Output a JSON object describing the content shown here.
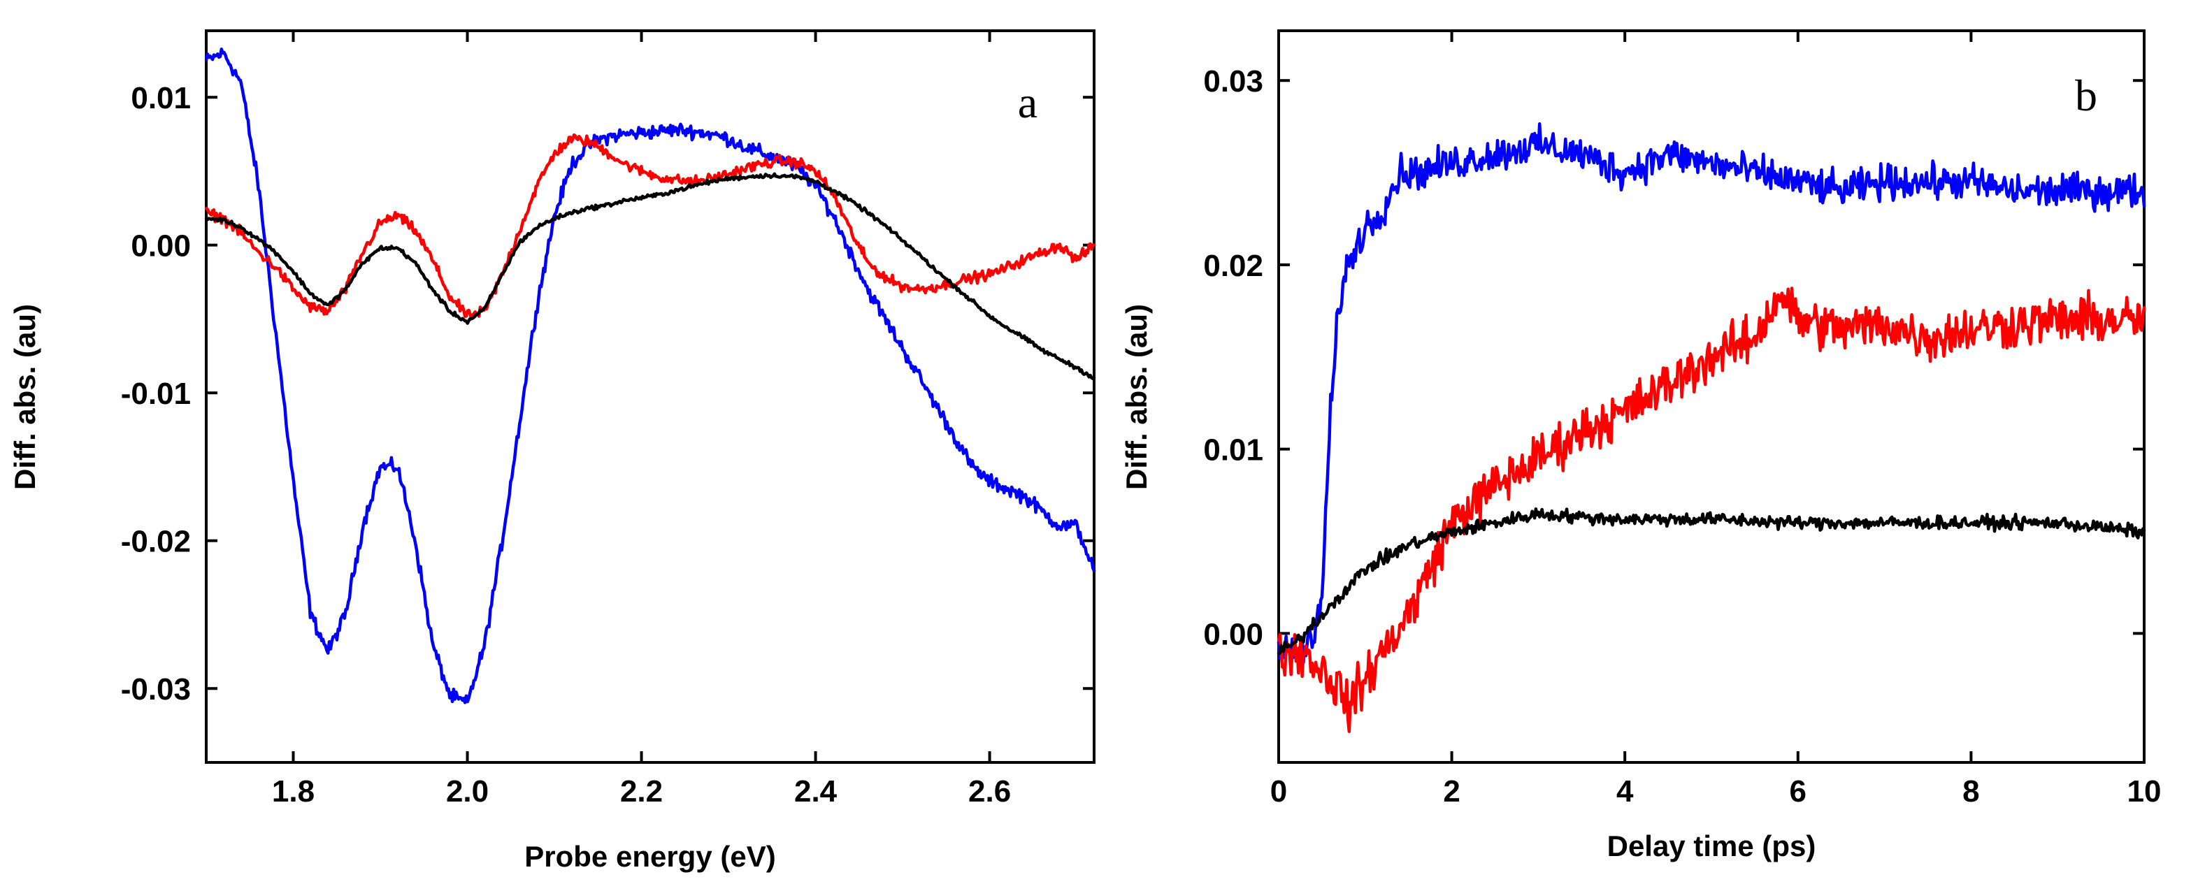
{
  "chart_data": [
    {
      "panel": "a",
      "type": "line",
      "title": "",
      "xlabel": "Probe energy (eV)",
      "ylabel": "Diff. abs. (au)",
      "xlim": [
        1.7,
        2.72
      ],
      "ylim": [
        -0.035,
        0.0145
      ],
      "xticks": [
        1.8,
        2.0,
        2.2,
        2.4,
        2.6
      ],
      "xtick_labels": [
        "1.8",
        "2.0",
        "2.2",
        "2.4",
        "2.6"
      ],
      "yticks": [
        0.01,
        0.0,
        -0.01,
        -0.02,
        -0.03
      ],
      "ytick_labels": [
        "0.01",
        "0.00",
        "-0.01",
        "-0.02",
        "-0.03"
      ],
      "series": [
        {
          "name": "blue",
          "color": "#0000ff",
          "noise": 0.0004,
          "x": [
            1.7,
            1.72,
            1.74,
            1.76,
            1.78,
            1.8,
            1.82,
            1.84,
            1.86,
            1.88,
            1.9,
            1.92,
            1.94,
            1.96,
            1.98,
            2.0,
            2.02,
            2.04,
            2.06,
            2.08,
            2.1,
            2.12,
            2.14,
            2.16,
            2.18,
            2.2,
            2.22,
            2.24,
            2.26,
            2.28,
            2.3,
            2.32,
            2.34,
            2.36,
            2.38,
            2.4,
            2.42,
            2.44,
            2.46,
            2.48,
            2.5,
            2.52,
            2.54,
            2.56,
            2.58,
            2.6,
            2.62,
            2.64,
            2.66,
            2.68,
            2.7,
            2.72
          ],
          "y": [
            0.0125,
            0.013,
            0.011,
            0.004,
            -0.006,
            -0.016,
            -0.025,
            -0.0275,
            -0.025,
            -0.019,
            -0.015,
            -0.015,
            -0.02,
            -0.027,
            -0.0305,
            -0.031,
            -0.027,
            -0.02,
            -0.012,
            -0.004,
            0.002,
            0.0055,
            0.0068,
            0.0073,
            0.0075,
            0.0076,
            0.0077,
            0.0078,
            0.0077,
            0.0075,
            0.0072,
            0.0066,
            0.0062,
            0.0058,
            0.0052,
            0.004,
            0.002,
            -0.0005,
            -0.003,
            -0.005,
            -0.007,
            -0.009,
            -0.011,
            -0.013,
            -0.015,
            -0.016,
            -0.0165,
            -0.017,
            -0.018,
            -0.019,
            -0.019,
            -0.022
          ]
        },
        {
          "name": "red",
          "color": "#ff0000",
          "noise": 0.0003,
          "x": [
            1.7,
            1.72,
            1.74,
            1.76,
            1.78,
            1.8,
            1.82,
            1.84,
            1.86,
            1.88,
            1.9,
            1.92,
            1.94,
            1.96,
            1.98,
            2.0,
            2.02,
            2.04,
            2.06,
            2.08,
            2.1,
            2.12,
            2.14,
            2.16,
            2.18,
            2.2,
            2.22,
            2.24,
            2.26,
            2.28,
            2.3,
            2.32,
            2.34,
            2.36,
            2.38,
            2.4,
            2.42,
            2.44,
            2.46,
            2.48,
            2.5,
            2.52,
            2.54,
            2.56,
            2.58,
            2.6,
            2.62,
            2.64,
            2.66,
            2.68,
            2.7,
            2.72
          ],
          "y": [
            0.0022,
            0.0018,
            0.0008,
            -0.0005,
            -0.0015,
            -0.003,
            -0.0042,
            -0.0045,
            -0.003,
            -0.0005,
            0.0015,
            0.002,
            0.001,
            -0.001,
            -0.0035,
            -0.0048,
            -0.0045,
            -0.002,
            0.001,
            0.004,
            0.0062,
            0.0072,
            0.007,
            0.0063,
            0.0055,
            0.005,
            0.0046,
            0.0044,
            0.0043,
            0.0045,
            0.0048,
            0.0052,
            0.0055,
            0.0057,
            0.0056,
            0.005,
            0.0035,
            0.001,
            -0.0012,
            -0.0022,
            -0.0028,
            -0.003,
            -0.0028,
            -0.0025,
            -0.0022,
            -0.002,
            -0.0015,
            -0.001,
            -0.0005,
            0.0,
            -0.001,
            0.0
          ]
        },
        {
          "name": "black",
          "color": "#000000",
          "noise": 0.00012,
          "x": [
            1.7,
            1.72,
            1.74,
            1.76,
            1.78,
            1.8,
            1.82,
            1.84,
            1.86,
            1.88,
            1.9,
            1.92,
            1.94,
            1.96,
            1.98,
            2.0,
            2.02,
            2.04,
            2.06,
            2.08,
            2.1,
            2.12,
            2.14,
            2.16,
            2.18,
            2.2,
            2.22,
            2.24,
            2.26,
            2.28,
            2.3,
            2.32,
            2.34,
            2.36,
            2.38,
            2.4,
            2.42,
            2.44,
            2.46,
            2.48,
            2.5,
            2.52,
            2.54,
            2.56,
            2.58,
            2.6,
            2.62,
            2.64,
            2.66,
            2.68,
            2.7,
            2.72
          ],
          "y": [
            0.0018,
            0.0017,
            0.0012,
            0.0004,
            -0.0005,
            -0.0018,
            -0.0033,
            -0.0041,
            -0.003,
            -0.0012,
            -0.0002,
            -0.0002,
            -0.0012,
            -0.003,
            -0.0045,
            -0.0052,
            -0.0043,
            -0.002,
            0.0002,
            0.0012,
            0.0018,
            0.0022,
            0.0025,
            0.0027,
            0.003,
            0.0032,
            0.0034,
            0.0037,
            0.004,
            0.0043,
            0.0045,
            0.0046,
            0.0047,
            0.0047,
            0.0046,
            0.0043,
            0.0037,
            0.003,
            0.0022,
            0.0013,
            0.0003,
            -0.0007,
            -0.0018,
            -0.0028,
            -0.0038,
            -0.0048,
            -0.0056,
            -0.0063,
            -0.0071,
            -0.0077,
            -0.0083,
            -0.009
          ]
        }
      ]
    },
    {
      "panel": "b",
      "type": "line",
      "title": "",
      "xlabel": "Delay time (ps)",
      "ylabel": "Diff. abs. (au)",
      "xlim": [
        0,
        10
      ],
      "ylim": [
        -0.007,
        0.0327
      ],
      "xticks": [
        0,
        2,
        4,
        6,
        8,
        10
      ],
      "xtick_labels": [
        "0",
        "2",
        "4",
        "6",
        "8",
        "10"
      ],
      "yticks": [
        0.03,
        0.02,
        0.01,
        0.0
      ],
      "ytick_labels": [
        "0.03",
        "0.02",
        "0.01",
        "0.00"
      ],
      "series": [
        {
          "name": "blue",
          "color": "#0000ff",
          "noise": 0.0008,
          "x": [
            0.0,
            0.2,
            0.4,
            0.5,
            0.6,
            0.7,
            0.8,
            1.0,
            1.2,
            1.4,
            1.6,
            2.0,
            2.5,
            3.0,
            3.5,
            4.0,
            4.5,
            5.0,
            5.5,
            6.0,
            6.5,
            7.0,
            7.5,
            8.0,
            8.5,
            9.0,
            9.5,
            10.0
          ],
          "y": [
            -0.001,
            -0.001,
            -0.0005,
            0.002,
            0.012,
            0.018,
            0.02,
            0.022,
            0.023,
            0.025,
            0.025,
            0.0255,
            0.026,
            0.0265,
            0.026,
            0.025,
            0.026,
            0.0255,
            0.025,
            0.0245,
            0.024,
            0.0245,
            0.0245,
            0.0245,
            0.024,
            0.024,
            0.024,
            0.024
          ]
        },
        {
          "name": "red",
          "color": "#ff0000",
          "noise": 0.0011,
          "x": [
            0.0,
            0.3,
            0.5,
            0.7,
            0.8,
            1.0,
            1.2,
            1.5,
            1.8,
            2.0,
            2.5,
            3.0,
            3.5,
            4.0,
            4.5,
            5.0,
            5.5,
            5.8,
            6.0,
            6.5,
            7.0,
            7.5,
            8.0,
            8.5,
            9.0,
            9.5,
            10.0
          ],
          "y": [
            -0.001,
            -0.001,
            -0.002,
            -0.003,
            -0.004,
            -0.0025,
            -0.001,
            0.001,
            0.004,
            0.006,
            0.008,
            0.0095,
            0.011,
            0.012,
            0.0135,
            0.015,
            0.016,
            0.0185,
            0.017,
            0.0165,
            0.0168,
            0.016,
            0.0165,
            0.0168,
            0.017,
            0.017,
            0.017
          ]
        },
        {
          "name": "black",
          "color": "#000000",
          "noise": 0.0003,
          "x": [
            0.0,
            0.2,
            0.5,
            0.8,
            1.0,
            1.5,
            2.0,
            2.5,
            3.0,
            3.5,
            4.0,
            5.0,
            6.0,
            7.0,
            8.0,
            9.0,
            10.0
          ],
          "y": [
            -0.001,
            -0.0005,
            0.001,
            0.0025,
            0.0035,
            0.0048,
            0.0055,
            0.006,
            0.0065,
            0.0063,
            0.0062,
            0.0062,
            0.006,
            0.006,
            0.006,
            0.006,
            0.0055
          ]
        }
      ]
    }
  ]
}
